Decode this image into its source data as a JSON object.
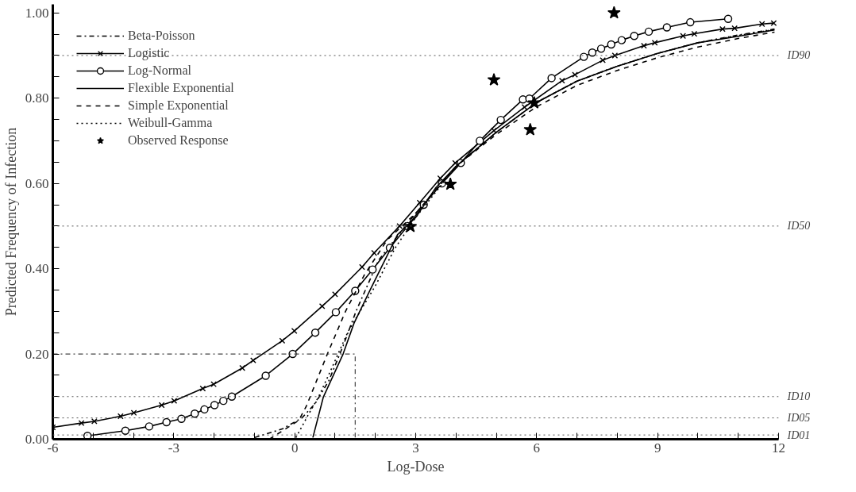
{
  "chart_data": {
    "type": "line",
    "xlabel": "Log-Dose",
    "ylabel": "Predicted Frequency of Infection",
    "xlim": [
      -6,
      12
    ],
    "ylim": [
      0,
      1.02
    ],
    "xticks": [
      -6,
      {
        "value": -5,
        "label": null
      },
      {
        "value": -4,
        "label": null
      },
      -3,
      {
        "value": -2,
        "label": null
      },
      {
        "value": -1,
        "label": null
      },
      0,
      {
        "value": 1,
        "label": null
      },
      {
        "value": 2,
        "label": null
      },
      3,
      {
        "value": 4,
        "label": null
      },
      {
        "value": 5,
        "label": null
      },
      6,
      {
        "value": 7,
        "label": null
      },
      {
        "value": 8,
        "label": null
      },
      9,
      {
        "value": 10,
        "label": null
      },
      {
        "value": 11,
        "label": null
      },
      12
    ],
    "yticks": [
      {
        "value": 0,
        "label": "0.00"
      },
      {
        "value": 0.05,
        "label": null
      },
      {
        "value": 0.1,
        "label": null
      },
      {
        "value": 0.15,
        "label": null
      },
      {
        "value": 0.2,
        "label": "0.20"
      },
      {
        "value": 0.25,
        "label": null
      },
      {
        "value": 0.3,
        "label": null
      },
      {
        "value": 0.35,
        "label": null
      },
      {
        "value": 0.4,
        "label": "0.40"
      },
      {
        "value": 0.45,
        "label": null
      },
      {
        "value": 0.5,
        "label": null
      },
      {
        "value": 0.55,
        "label": null
      },
      {
        "value": 0.6,
        "label": "0.60"
      },
      {
        "value": 0.65,
        "label": null
      },
      {
        "value": 0.7,
        "label": null
      },
      {
        "value": 0.75,
        "label": null
      },
      {
        "value": 0.8,
        "label": "0.80"
      },
      {
        "value": 0.85,
        "label": null
      },
      {
        "value": 0.9,
        "label": null
      },
      {
        "value": 0.95,
        "label": null
      },
      {
        "value": 1.0,
        "label": "1.00"
      }
    ],
    "grid": false,
    "legend": "top left",
    "series": [
      {
        "name": "Beta-Poisson",
        "color": "#000000",
        "line_style": "dashdot",
        "marker": "none",
        "x": [
          -0.99,
          -0.31,
          0.18,
          0.51,
          0.85,
          1.2,
          1.52,
          2.08,
          3.0,
          4,
          5,
          6,
          7,
          8,
          9,
          10,
          11,
          11.9
        ],
        "values": [
          0.004,
          0.024,
          0.05,
          0.084,
          0.138,
          0.219,
          0.3,
          0.42,
          0.53,
          0.64,
          0.72,
          0.79,
          0.84,
          0.875,
          0.905,
          0.93,
          0.948,
          0.962
        ]
      },
      {
        "name": "Logistic",
        "color": "#000000",
        "line_style": "solid",
        "marker": "cross",
        "x": [
          -6,
          -5.29,
          -4.97,
          -4.32,
          -3.99,
          -3.3,
          -2.99,
          -2.28,
          -2.01,
          -1.3,
          -1.03,
          -0.31,
          -0.01,
          0.68,
          1.0,
          1.67,
          1.97,
          2.6,
          3.1,
          3.61,
          3.98,
          4.94,
          5.7,
          6.63,
          6.95,
          7.64,
          7.94,
          8.66,
          8.93,
          9.63,
          9.91,
          10.61,
          10.91,
          11.59,
          11.88
        ],
        "values": [
          0.028,
          0.038,
          0.042,
          0.054,
          0.062,
          0.08,
          0.09,
          0.119,
          0.129,
          0.167,
          0.185,
          0.231,
          0.254,
          0.312,
          0.34,
          0.404,
          0.437,
          0.5,
          0.555,
          0.612,
          0.648,
          0.724,
          0.779,
          0.841,
          0.855,
          0.889,
          0.9,
          0.923,
          0.93,
          0.946,
          0.951,
          0.962,
          0.964,
          0.974,
          0.976
        ]
      },
      {
        "name": "Log-Normal",
        "color": "#000000",
        "line_style": "solid",
        "marker": "circle",
        "x": [
          -5.14,
          -4.2,
          -3.61,
          -3.18,
          -2.81,
          -2.48,
          -2.24,
          -1.99,
          -1.77,
          -1.56,
          -0.72,
          -0.05,
          0.51,
          1.02,
          1.5,
          1.93,
          2.36,
          2.8,
          3.2,
          3.65,
          4.12,
          4.59,
          5.11,
          5.66,
          5.82,
          6.37,
          7.17,
          7.38,
          7.6,
          7.85,
          8.11,
          8.42,
          8.78,
          9.23,
          9.81,
          10.75
        ],
        "values": [
          0.008,
          0.02,
          0.03,
          0.04,
          0.048,
          0.06,
          0.07,
          0.08,
          0.09,
          0.1,
          0.149,
          0.2,
          0.25,
          0.298,
          0.348,
          0.398,
          0.449,
          0.5,
          0.55,
          0.6,
          0.648,
          0.7,
          0.749,
          0.797,
          0.799,
          0.847,
          0.897,
          0.907,
          0.916,
          0.926,
          0.936,
          0.946,
          0.956,
          0.966,
          0.978,
          0.986
        ]
      },
      {
        "name": "Flexible Exponential",
        "color": "#000000",
        "line_style": "solid",
        "marker": "none",
        "x": [
          0.45,
          0.71,
          1.2,
          1.47,
          1.88,
          2.55,
          3.0,
          3.5,
          4,
          5,
          6,
          7,
          8,
          9,
          10,
          11,
          11.9
        ],
        "values": [
          0.004,
          0.099,
          0.2,
          0.272,
          0.352,
          0.48,
          0.52,
          0.59,
          0.64,
          0.72,
          0.79,
          0.84,
          0.875,
          0.905,
          0.93,
          0.945,
          0.96
        ]
      },
      {
        "name": "Simple Exponential",
        "color": "#000000",
        "line_style": "dashed",
        "marker": "none",
        "x": [
          -0.63,
          0.1,
          0.29,
          0.81,
          1.26,
          1.73,
          2.29,
          3.0,
          4,
          5,
          6,
          7,
          8,
          9,
          10,
          11,
          11.9
        ],
        "values": [
          0,
          0.044,
          0.078,
          0.2,
          0.3,
          0.386,
          0.467,
          0.53,
          0.64,
          0.715,
          0.78,
          0.83,
          0.865,
          0.895,
          0.92,
          0.94,
          0.955
        ]
      },
      {
        "name": "Weibull-Gamma",
        "color": "#000000",
        "line_style": "dotted",
        "marker": "none",
        "x": [
          0.03,
          0.34,
          0.59,
          0.91,
          1.32,
          2.0,
          2.5,
          3.0,
          4,
          5,
          6,
          7,
          8,
          9,
          10,
          11,
          11.9
        ],
        "values": [
          0.004,
          0.058,
          0.099,
          0.165,
          0.252,
          0.36,
          0.45,
          0.52,
          0.64,
          0.72,
          0.79,
          0.84,
          0.875,
          0.905,
          0.93,
          0.947,
          0.961
        ]
      },
      {
        "name": "Observed Response",
        "type": "scatter",
        "color": "#000000",
        "marker": "star",
        "x": [
          2.87,
          3.86,
          4.94,
          5.84,
          5.94,
          7.92
        ],
        "values": [
          0.499,
          0.598,
          0.843,
          0.726,
          0.789,
          1.0
        ]
      }
    ],
    "ref_lines": [
      {
        "axis": "y",
        "value": 0.9,
        "label": "ID90",
        "line_style": "dotted"
      },
      {
        "axis": "y",
        "value": 0.5,
        "label": "ID50",
        "line_style": "dotted"
      },
      {
        "axis": "y",
        "value": 0.1,
        "label": "ID10",
        "line_style": "dotted"
      },
      {
        "axis": "y",
        "value": 0.05,
        "label": "ID05",
        "line_style": "dotted"
      },
      {
        "axis": "y",
        "value": 0.01,
        "label": "ID01",
        "line_style": "dotted"
      }
    ]
  }
}
